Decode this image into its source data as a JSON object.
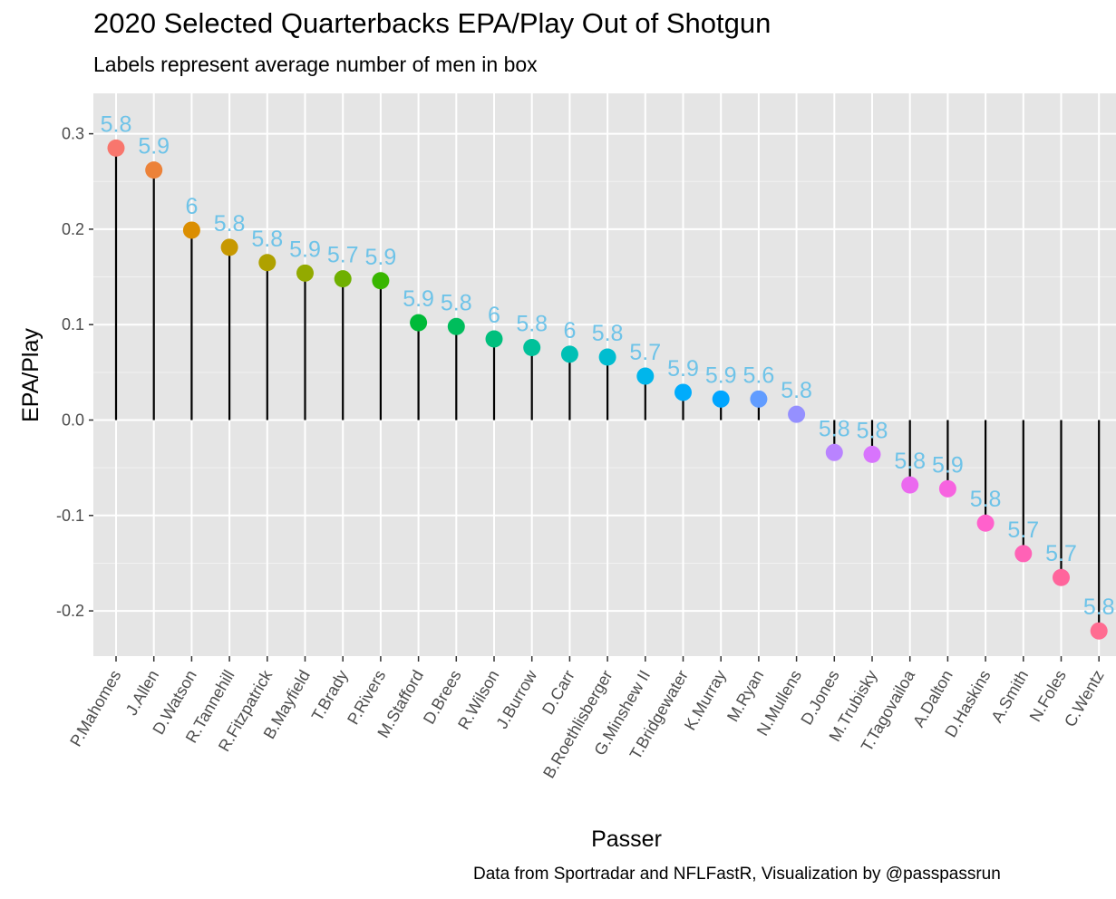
{
  "chart_data": {
    "type": "scatter",
    "title": "2020 Selected Quarterbacks EPA/Play Out of Shotgun",
    "subtitle": "Labels represent average number of men in box",
    "caption": "Data from Sportradar and NFLFastR, Visualization by @passpassrun",
    "xlabel": "Passer",
    "ylabel": "EPA/Play",
    "ylim": [
      -0.25,
      0.3
    ],
    "y_ticks": [
      -0.2,
      -0.1,
      0.0,
      0.1,
      0.2,
      0.3
    ],
    "y_tick_labels": [
      "-0.2",
      "-0.1",
      "0.0",
      "0.1",
      "0.2",
      "0.3"
    ],
    "grid": true,
    "label_color": "#6EC3E8",
    "categories": [
      "P.Mahomes",
      "J.Allen",
      "D.Watson",
      "R.Tannehill",
      "R.Fitzpatrick",
      "B.Mayfield",
      "T.Brady",
      "P.Rivers",
      "M.Stafford",
      "D.Brees",
      "R.Wilson",
      "J.Burrow",
      "D.Carr",
      "B.Roethlisberger",
      "G.Minshew II",
      "T.Bridgewater",
      "K.Murray",
      "M.Ryan",
      "N.Mullens",
      "D.Jones",
      "M.Trubisky",
      "T.Tagovailoa",
      "A.Dalton",
      "D.Haskins",
      "A.Smith",
      "N.Foles",
      "C.Wentz"
    ],
    "values": [
      0.285,
      0.262,
      0.199,
      0.181,
      0.165,
      0.154,
      0.148,
      0.146,
      0.102,
      0.098,
      0.085,
      0.076,
      0.069,
      0.066,
      0.046,
      0.029,
      0.022,
      0.022,
      0.006,
      -0.034,
      -0.036,
      -0.068,
      -0.072,
      -0.108,
      -0.14,
      -0.165,
      -0.221
    ],
    "labels": [
      "5.8",
      "5.9",
      "6",
      "5.8",
      "5.8",
      "5.9",
      "5.7",
      "5.9",
      "5.9",
      "5.8",
      "6",
      "5.8",
      "6",
      "5.8",
      "5.7",
      "5.9",
      "5.9",
      "5.6",
      "5.8",
      "5.8",
      "5.8",
      "5.8",
      "5.9",
      "5.8",
      "5.7",
      "5.7",
      "5.8"
    ],
    "colors": [
      "#F8766D",
      "#EC8239",
      "#DB8E00",
      "#C79800",
      "#AFA100",
      "#93AA00",
      "#6FB000",
      "#39B600",
      "#00BA38",
      "#00BD5C",
      "#00BF7D",
      "#00C19A",
      "#00C0B5",
      "#00BDD0",
      "#00B6EB",
      "#00ACFC",
      "#00A5FF",
      "#619CFF",
      "#9590FF",
      "#B983FF",
      "#D874FD",
      "#EB69EF",
      "#F763E0",
      "#FF61CC",
      "#FF62B6",
      "#FF659C",
      "#FF6C91"
    ]
  }
}
